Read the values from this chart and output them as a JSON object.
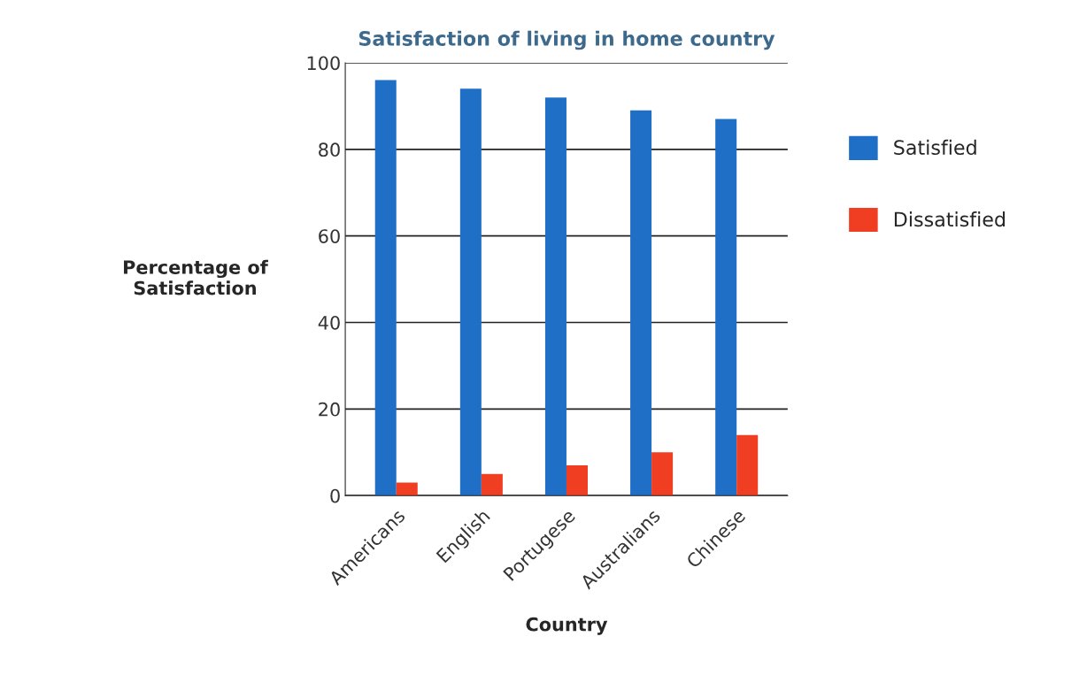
{
  "chart_data": {
    "type": "bar",
    "title": "Satisfaction of living in home country",
    "xlabel": "Country",
    "ylabel": "Percentage of\nSatisfaction",
    "categories": [
      "Americans",
      "English",
      "Portugese",
      "Australians",
      "Chinese"
    ],
    "series": [
      {
        "name": "Satisfied",
        "color": "#1f6fc6",
        "values": [
          96,
          94,
          92,
          89,
          87
        ]
      },
      {
        "name": "Dissatisfied",
        "color": "#f03e22",
        "values": [
          3,
          5,
          7,
          10,
          14
        ]
      }
    ],
    "ylim": [
      0,
      100
    ],
    "yticks": [
      0,
      20,
      40,
      60,
      80,
      100
    ],
    "grid": "y",
    "legend": "right"
  }
}
